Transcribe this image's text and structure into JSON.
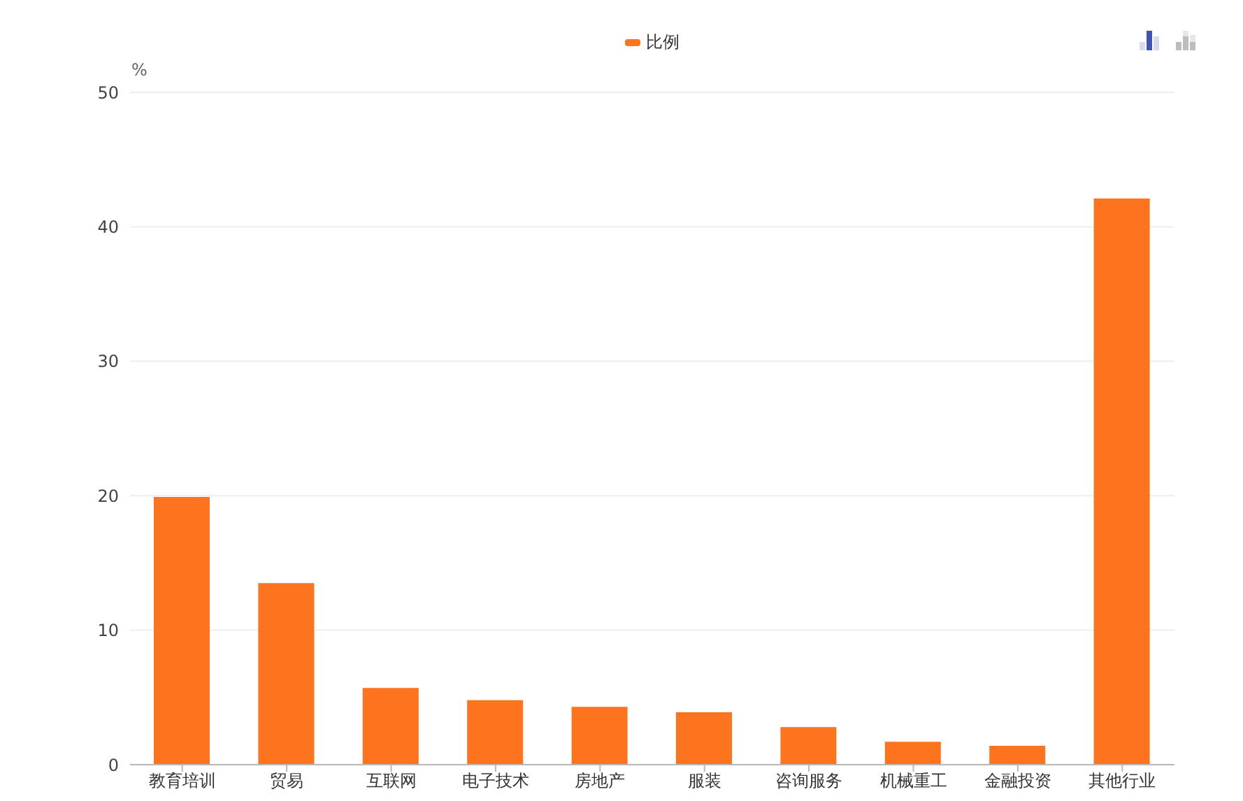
{
  "chart_data": {
    "type": "bar",
    "categories": [
      "教育培训",
      "贸易",
      "互联网",
      "电子技术",
      "房地产",
      "服装",
      "咨询服务",
      "机械重工",
      "金融投资",
      "其他行业"
    ],
    "series": [
      {
        "name": "比例",
        "color": "#fe731d",
        "values": [
          19.9,
          13.5,
          5.7,
          4.8,
          4.3,
          3.9,
          2.8,
          1.7,
          1.4,
          42.1
        ]
      }
    ],
    "ylabel": "%",
    "ylim": [
      0,
      50
    ],
    "yticks": [
      0,
      10,
      20,
      30,
      40,
      50
    ],
    "grid": "y",
    "legend": "top"
  }
}
